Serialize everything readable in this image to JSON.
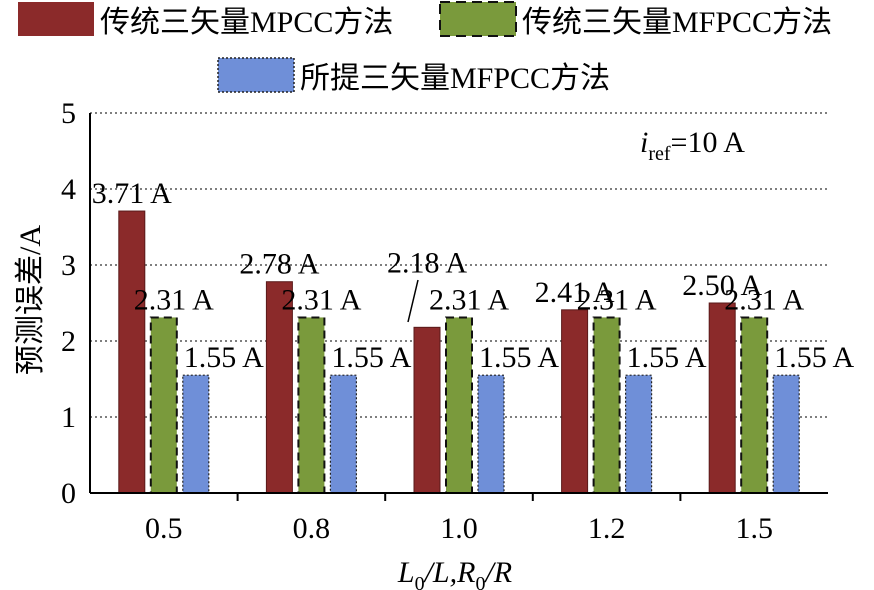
{
  "chart_data": {
    "type": "bar",
    "title": "",
    "xlabel": "L0/L,R0/R",
    "ylabel": "预测误差/A",
    "ylim": [
      0,
      5
    ],
    "yticks": [
      "0",
      "1",
      "2",
      "3",
      "4",
      "5"
    ],
    "grid": true,
    "categories": [
      "0.5",
      "0.8",
      "1.0",
      "1.2",
      "1.5"
    ],
    "annotation": {
      "i": "i",
      "sub": "ref",
      "rest": "=10 A"
    },
    "legend_position": "top",
    "series": [
      {
        "name": "传统三矢量MPCC方法",
        "color": "#8b2a2a",
        "dashed": false,
        "values": [
          3.71,
          2.78,
          2.18,
          2.41,
          2.5
        ],
        "labels": [
          "3.71 A",
          "2.78 A",
          "2.18 A",
          "2.41 A",
          "2.50 A"
        ]
      },
      {
        "name": "传统三矢量MFPCC方法",
        "color": "#7a9a3c",
        "dashed": true,
        "values": [
          2.31,
          2.31,
          2.31,
          2.31,
          2.31
        ],
        "labels": [
          "2.31 A",
          "2.31 A",
          "2.31 A",
          "2.31 A",
          "2.31 A"
        ]
      },
      {
        "name": "所提三矢量MFPCC方法",
        "color": "#6f8fd8",
        "dashed": false,
        "dotted_edge": true,
        "values": [
          1.55,
          1.55,
          1.55,
          1.55,
          1.55
        ],
        "labels": [
          "1.55 A",
          "1.55 A",
          "1.55 A",
          "1.55 A",
          "1.55 A"
        ]
      }
    ]
  }
}
